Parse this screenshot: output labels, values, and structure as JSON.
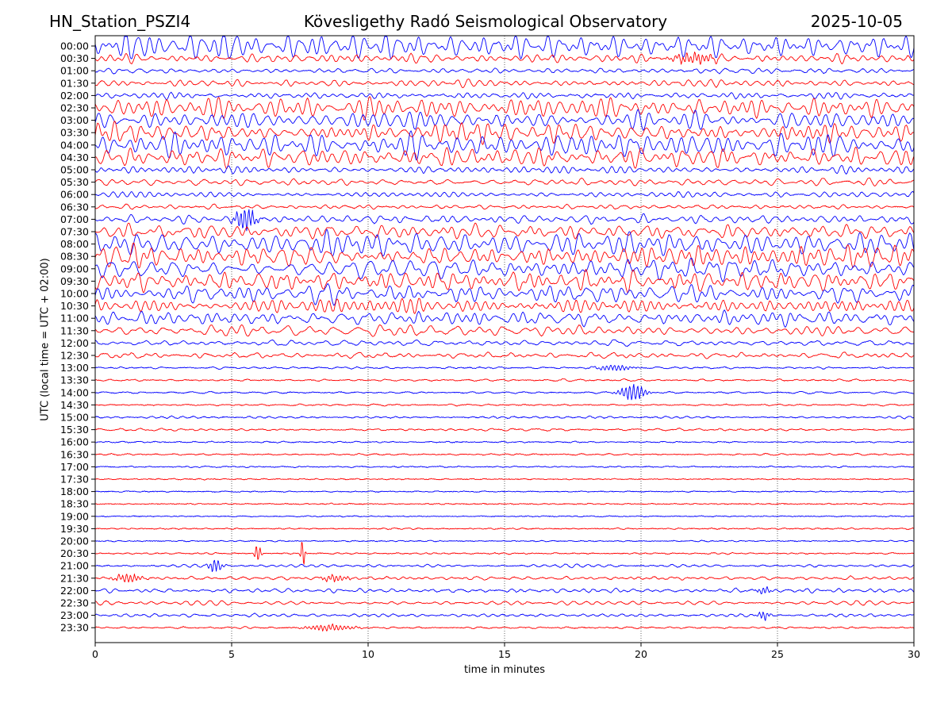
{
  "header": {
    "station": "HN_Station_PSZI4",
    "observatory": "Kövesligethy Radó Seismological Observatory",
    "date": "2025-10-05"
  },
  "chart_data": {
    "type": "line",
    "title": "Kövesligethy Radó Seismological Observatory",
    "xlabel": "time in minutes",
    "ylabel": "UTC (local time = UTC + 02:00)",
    "xlim": [
      0,
      30
    ],
    "x_ticks": [
      0,
      5,
      10,
      15,
      20,
      25,
      30
    ],
    "x_grid": true,
    "y_ticks": [
      "00:00",
      "00:30",
      "01:00",
      "01:30",
      "02:00",
      "02:30",
      "03:00",
      "03:30",
      "04:00",
      "04:30",
      "05:00",
      "05:30",
      "06:00",
      "06:30",
      "07:00",
      "07:30",
      "08:00",
      "08:30",
      "09:00",
      "09:30",
      "10:00",
      "10:30",
      "11:00",
      "11:30",
      "12:00",
      "12:30",
      "13:00",
      "13:30",
      "14:00",
      "14:30",
      "15:00",
      "15:30",
      "16:00",
      "16:30",
      "17:00",
      "17:30",
      "18:00",
      "18:30",
      "19:00",
      "19:30",
      "20:00",
      "20:30",
      "21:00",
      "21:30",
      "22:00",
      "22:30",
      "23:00",
      "23:30"
    ],
    "trace_colors": [
      "#0000ff",
      "#ff0000"
    ],
    "trace_activity": [
      1.0,
      0.45,
      0.22,
      0.32,
      0.3,
      0.75,
      0.82,
      0.85,
      0.82,
      0.65,
      0.3,
      0.3,
      0.22,
      0.2,
      0.35,
      0.6,
      0.82,
      0.8,
      0.82,
      0.82,
      0.7,
      0.55,
      0.55,
      0.45,
      0.22,
      0.2,
      0.08,
      0.1,
      0.08,
      0.08,
      0.1,
      0.09,
      0.07,
      0.07,
      0.05,
      0.04,
      0.04,
      0.04,
      0.04,
      0.05,
      0.05,
      0.06,
      0.12,
      0.14,
      0.18,
      0.15,
      0.12,
      0.08
    ],
    "events": [
      {
        "row": "00:30",
        "minute": 21.9,
        "amplitude": 0.6,
        "width": 0.7
      },
      {
        "row": "07:00",
        "minute": 5.5,
        "amplitude": 1.4,
        "width": 0.35
      },
      {
        "row": "13:00",
        "minute": 19.0,
        "amplitude": 0.35,
        "width": 0.6
      },
      {
        "row": "14:00",
        "minute": 19.7,
        "amplitude": 1.0,
        "width": 0.45
      },
      {
        "row": "20:30",
        "minute": 5.95,
        "amplitude": 1.1,
        "width": 0.12
      },
      {
        "row": "20:30",
        "minute": 7.6,
        "amplitude": 1.8,
        "width": 0.08
      },
      {
        "row": "21:00",
        "minute": 4.4,
        "amplitude": 0.7,
        "width": 0.25
      },
      {
        "row": "21:30",
        "minute": 1.2,
        "amplitude": 0.45,
        "width": 0.5
      },
      {
        "row": "21:30",
        "minute": 8.8,
        "amplitude": 0.4,
        "width": 0.45
      },
      {
        "row": "22:00",
        "minute": 24.5,
        "amplitude": 0.5,
        "width": 0.2
      },
      {
        "row": "23:00",
        "minute": 24.5,
        "amplitude": 0.5,
        "width": 0.2
      },
      {
        "row": "23:30",
        "minute": 8.6,
        "amplitude": 0.35,
        "width": 0.8
      }
    ]
  }
}
